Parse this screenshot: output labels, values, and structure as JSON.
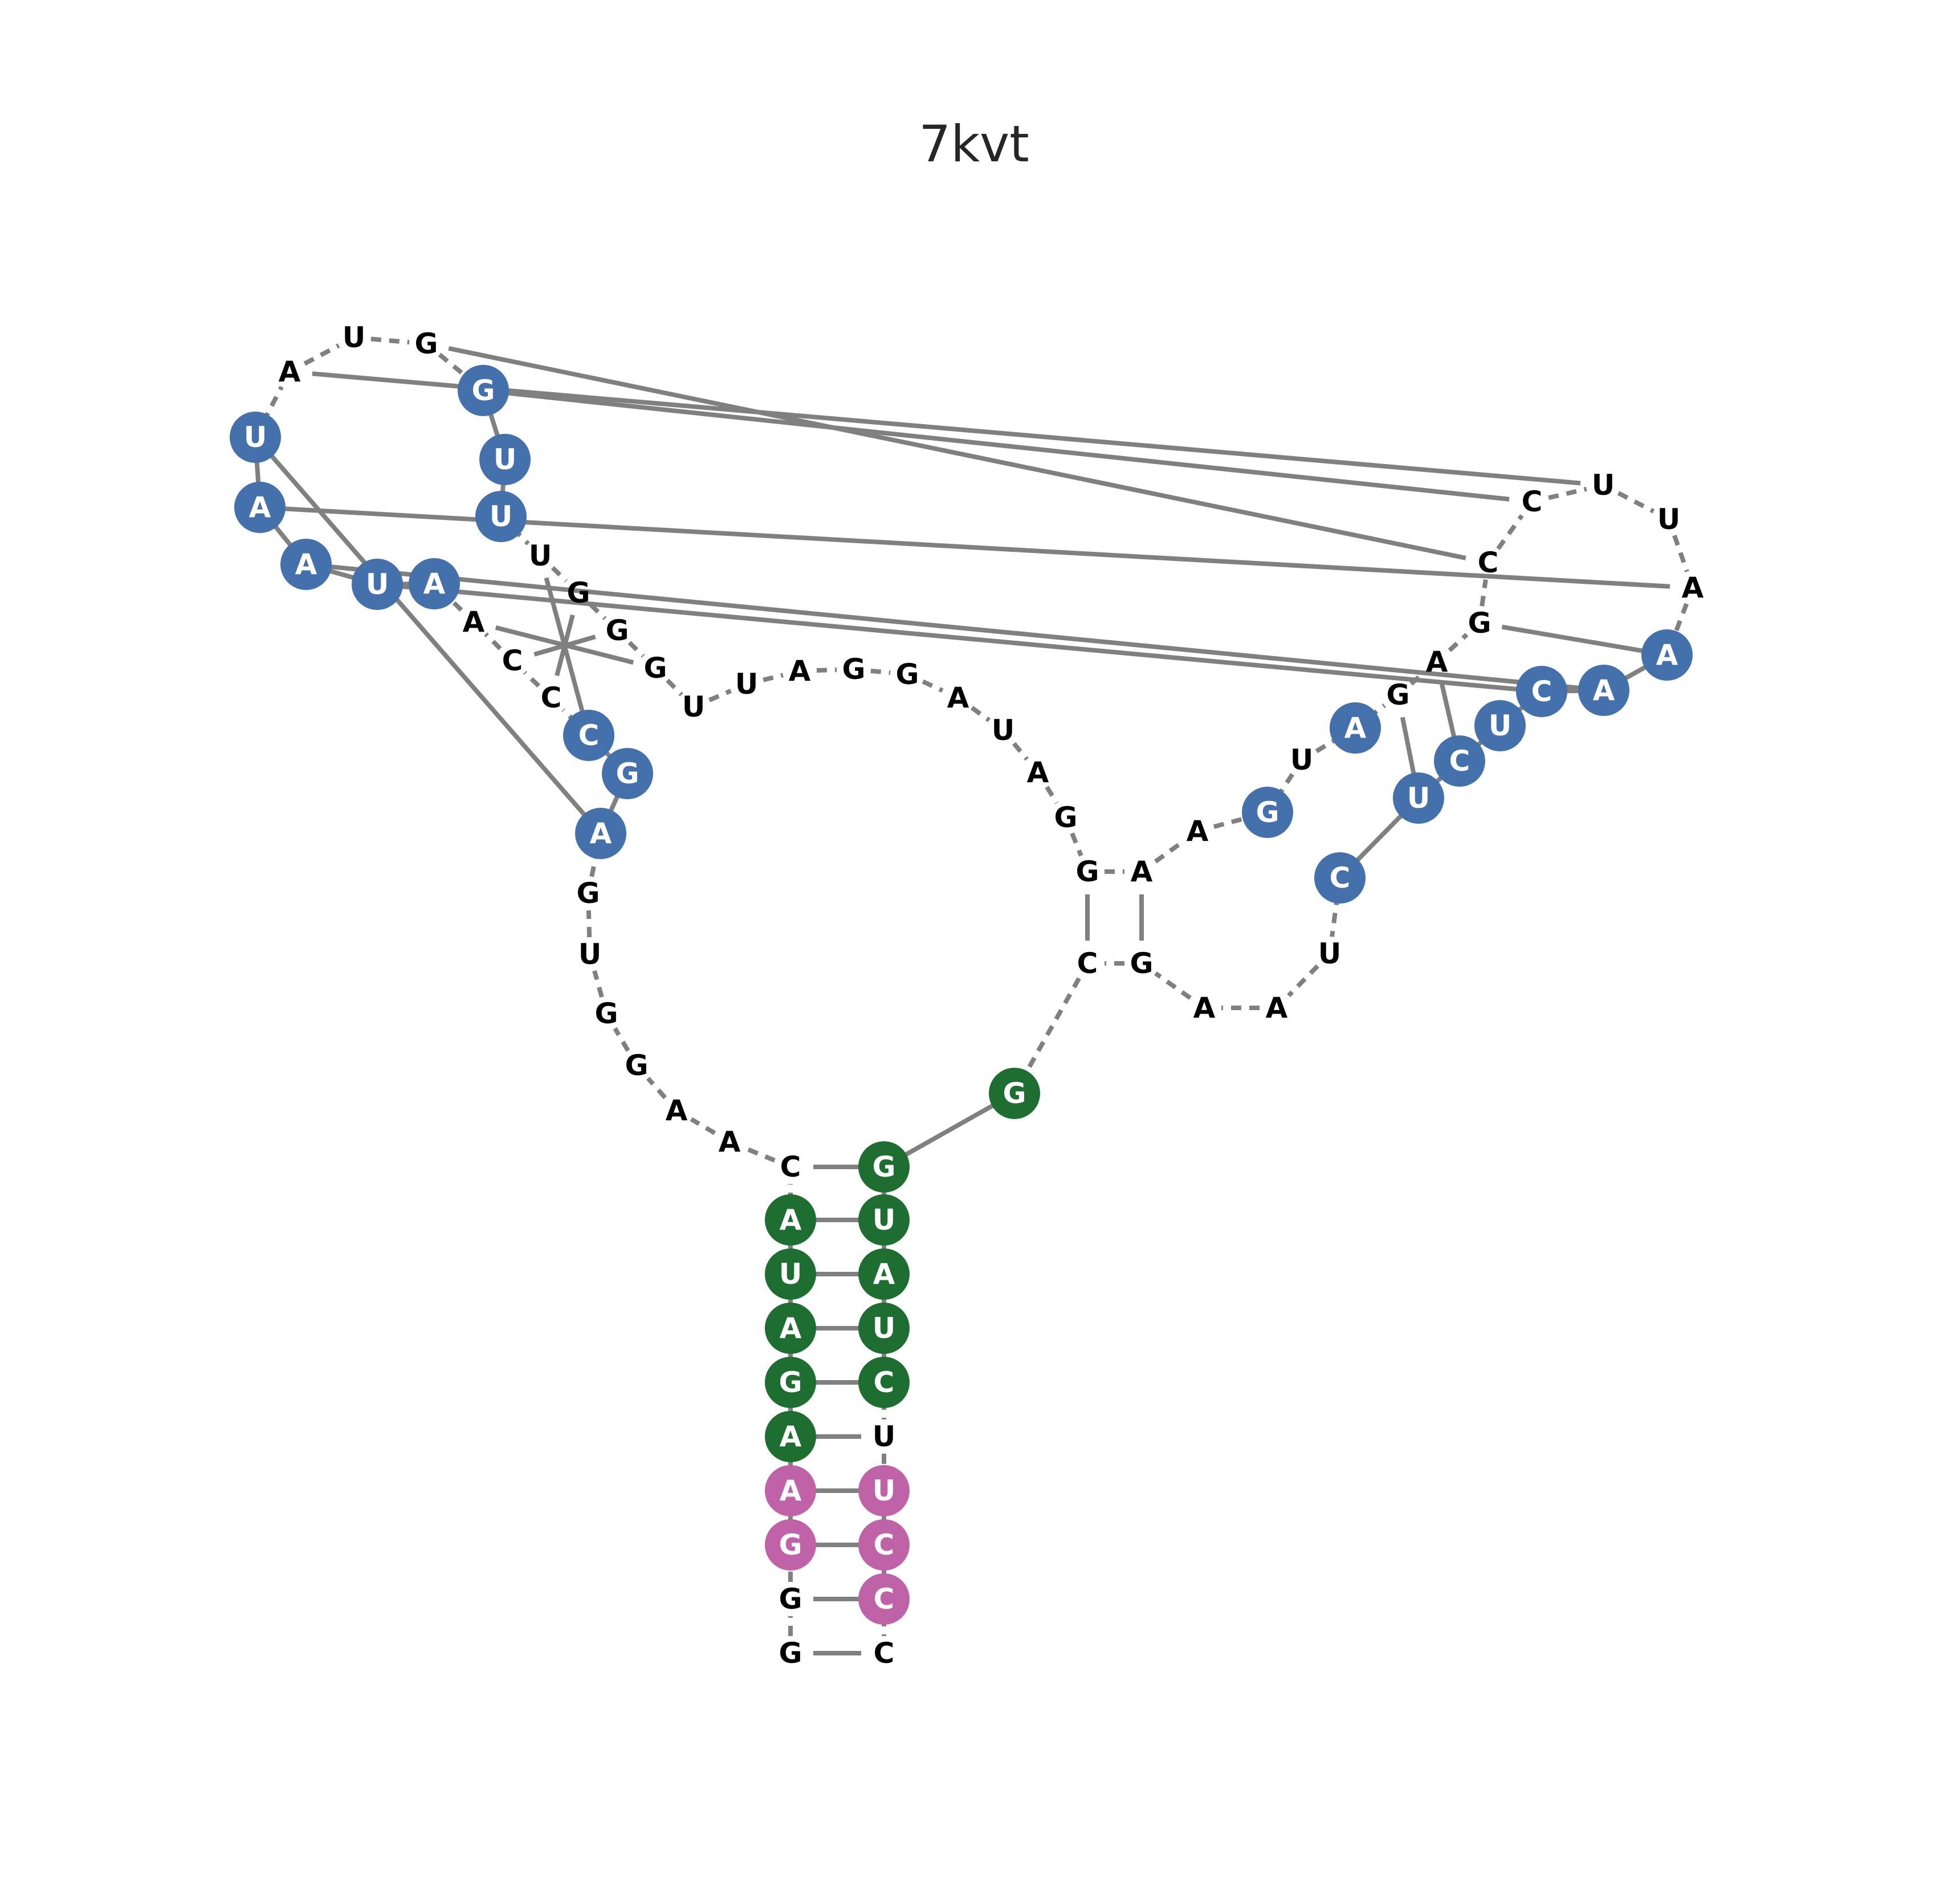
{
  "title": "7kvt",
  "colors": {
    "edge": "#808080",
    "blue": "#4470ac",
    "green": "#1e6e32",
    "pink": "#c062a8",
    "text": "#000000",
    "background": "#ffffff"
  },
  "nucleotides": [
    {
      "id": "n1",
      "base": "G",
      "color": "none"
    },
    {
      "id": "n2",
      "base": "G",
      "color": "none"
    },
    {
      "id": "n3",
      "base": "G",
      "color": "pink"
    },
    {
      "id": "n4",
      "base": "A",
      "color": "pink"
    },
    {
      "id": "n5",
      "base": "A",
      "color": "green"
    },
    {
      "id": "n6",
      "base": "G",
      "color": "green"
    },
    {
      "id": "n7",
      "base": "A",
      "color": "green"
    },
    {
      "id": "n8",
      "base": "U",
      "color": "green"
    },
    {
      "id": "n9",
      "base": "A",
      "color": "green"
    },
    {
      "id": "n10",
      "base": "C",
      "color": "none"
    },
    {
      "id": "n11",
      "base": "A",
      "color": "none"
    },
    {
      "id": "n12",
      "base": "A",
      "color": "none"
    },
    {
      "id": "n13",
      "base": "G",
      "color": "none"
    },
    {
      "id": "n14",
      "base": "G",
      "color": "none"
    },
    {
      "id": "n15",
      "base": "U",
      "color": "none"
    },
    {
      "id": "n16",
      "base": "G",
      "color": "none"
    },
    {
      "id": "n17",
      "base": "A",
      "color": "blue"
    },
    {
      "id": "n18",
      "base": "G",
      "color": "blue"
    },
    {
      "id": "n19",
      "base": "C",
      "color": "blue"
    },
    {
      "id": "n20",
      "base": "C",
      "color": "none"
    },
    {
      "id": "n21",
      "base": "C",
      "color": "none"
    },
    {
      "id": "n22",
      "base": "A",
      "color": "none"
    },
    {
      "id": "n23",
      "base": "A",
      "color": "blue"
    },
    {
      "id": "n24",
      "base": "U",
      "color": "blue"
    },
    {
      "id": "n25",
      "base": "A",
      "color": "blue"
    },
    {
      "id": "n26",
      "base": "A",
      "color": "blue"
    },
    {
      "id": "n27",
      "base": "U",
      "color": "blue"
    },
    {
      "id": "n28",
      "base": "A",
      "color": "none"
    },
    {
      "id": "n29",
      "base": "U",
      "color": "none"
    },
    {
      "id": "n30",
      "base": "G",
      "color": "none"
    },
    {
      "id": "n31",
      "base": "G",
      "color": "blue"
    },
    {
      "id": "n32",
      "base": "U",
      "color": "blue"
    },
    {
      "id": "n33",
      "base": "U",
      "color": "blue"
    },
    {
      "id": "n34",
      "base": "U",
      "color": "none"
    },
    {
      "id": "n35",
      "base": "G",
      "color": "none"
    },
    {
      "id": "n36",
      "base": "G",
      "color": "none"
    },
    {
      "id": "n37",
      "base": "G",
      "color": "none"
    },
    {
      "id": "n38",
      "base": "U",
      "color": "none"
    },
    {
      "id": "n39",
      "base": "U",
      "color": "none"
    },
    {
      "id": "n40",
      "base": "A",
      "color": "none"
    },
    {
      "id": "n41",
      "base": "G",
      "color": "none"
    },
    {
      "id": "n42",
      "base": "G",
      "color": "none"
    },
    {
      "id": "n43",
      "base": "A",
      "color": "none"
    },
    {
      "id": "n44",
      "base": "U",
      "color": "none"
    },
    {
      "id": "n45",
      "base": "A",
      "color": "none"
    },
    {
      "id": "n46",
      "base": "G",
      "color": "none"
    },
    {
      "id": "n47",
      "base": "G",
      "color": "none"
    },
    {
      "id": "n48",
      "base": "A",
      "color": "none"
    },
    {
      "id": "n49",
      "base": "A",
      "color": "none"
    },
    {
      "id": "n50",
      "base": "G",
      "color": "blue"
    },
    {
      "id": "n51",
      "base": "U",
      "color": "none"
    },
    {
      "id": "n52",
      "base": "A",
      "color": "blue"
    },
    {
      "id": "n53",
      "base": "G",
      "color": "none"
    },
    {
      "id": "n54",
      "base": "A",
      "color": "none"
    },
    {
      "id": "n55",
      "base": "G",
      "color": "none"
    },
    {
      "id": "n56",
      "base": "C",
      "color": "none"
    },
    {
      "id": "n57",
      "base": "C",
      "color": "none"
    },
    {
      "id": "n58",
      "base": "U",
      "color": "none"
    },
    {
      "id": "n59",
      "base": "U",
      "color": "none"
    },
    {
      "id": "n60",
      "base": "A",
      "color": "none"
    },
    {
      "id": "n61",
      "base": "A",
      "color": "blue"
    },
    {
      "id": "n62",
      "base": "A",
      "color": "blue"
    },
    {
      "id": "n63",
      "base": "C",
      "color": "blue"
    },
    {
      "id": "n64",
      "base": "U",
      "color": "blue"
    },
    {
      "id": "n65",
      "base": "C",
      "color": "blue"
    },
    {
      "id": "n66",
      "base": "U",
      "color": "blue"
    },
    {
      "id": "n67",
      "base": "C",
      "color": "blue"
    },
    {
      "id": "n68",
      "base": "U",
      "color": "none"
    },
    {
      "id": "n69",
      "base": "A",
      "color": "none"
    },
    {
      "id": "n70",
      "base": "A",
      "color": "none"
    },
    {
      "id": "n71",
      "base": "G",
      "color": "none"
    },
    {
      "id": "n72",
      "base": "C",
      "color": "none"
    },
    {
      "id": "n73",
      "base": "G",
      "color": "green"
    },
    {
      "id": "n74",
      "base": "G",
      "color": "green"
    },
    {
      "id": "n75",
      "base": "U",
      "color": "green"
    },
    {
      "id": "n76",
      "base": "A",
      "color": "green"
    },
    {
      "id": "n77",
      "base": "U",
      "color": "green"
    },
    {
      "id": "n78",
      "base": "C",
      "color": "green"
    },
    {
      "id": "n79",
      "base": "U",
      "color": "none"
    },
    {
      "id": "n80",
      "base": "U",
      "color": "pink"
    },
    {
      "id": "n81",
      "base": "C",
      "color": "pink"
    },
    {
      "id": "n82",
      "base": "C",
      "color": "pink"
    },
    {
      "id": "n83",
      "base": "C",
      "color": "none"
    }
  ],
  "base_pairs": [
    [
      "n1",
      "n83"
    ],
    [
      "n2",
      "n82"
    ],
    [
      "n3",
      "n81"
    ],
    [
      "n4",
      "n80"
    ],
    [
      "n5",
      "n79"
    ],
    [
      "n6",
      "n78"
    ],
    [
      "n7",
      "n77"
    ],
    [
      "n8",
      "n76"
    ],
    [
      "n9",
      "n75"
    ],
    [
      "n10",
      "n74"
    ],
    [
      "n19",
      "n34"
    ],
    [
      "n20",
      "n35"
    ],
    [
      "n21",
      "n36"
    ],
    [
      "n22",
      "n37"
    ],
    [
      "n47",
      "n72"
    ],
    [
      "n48",
      "n71"
    ],
    [
      "n55",
      "n61"
    ],
    [
      "n54",
      "n65"
    ],
    [
      "n53",
      "n66"
    ],
    [
      "n30",
      "n56"
    ],
    [
      "n31",
      "n57"
    ],
    [
      "n28",
      "n58"
    ],
    [
      "n26",
      "n60"
    ],
    [
      "n25",
      "n62"
    ],
    [
      "n24",
      "n63"
    ],
    [
      "n27",
      "n17"
    ]
  ]
}
